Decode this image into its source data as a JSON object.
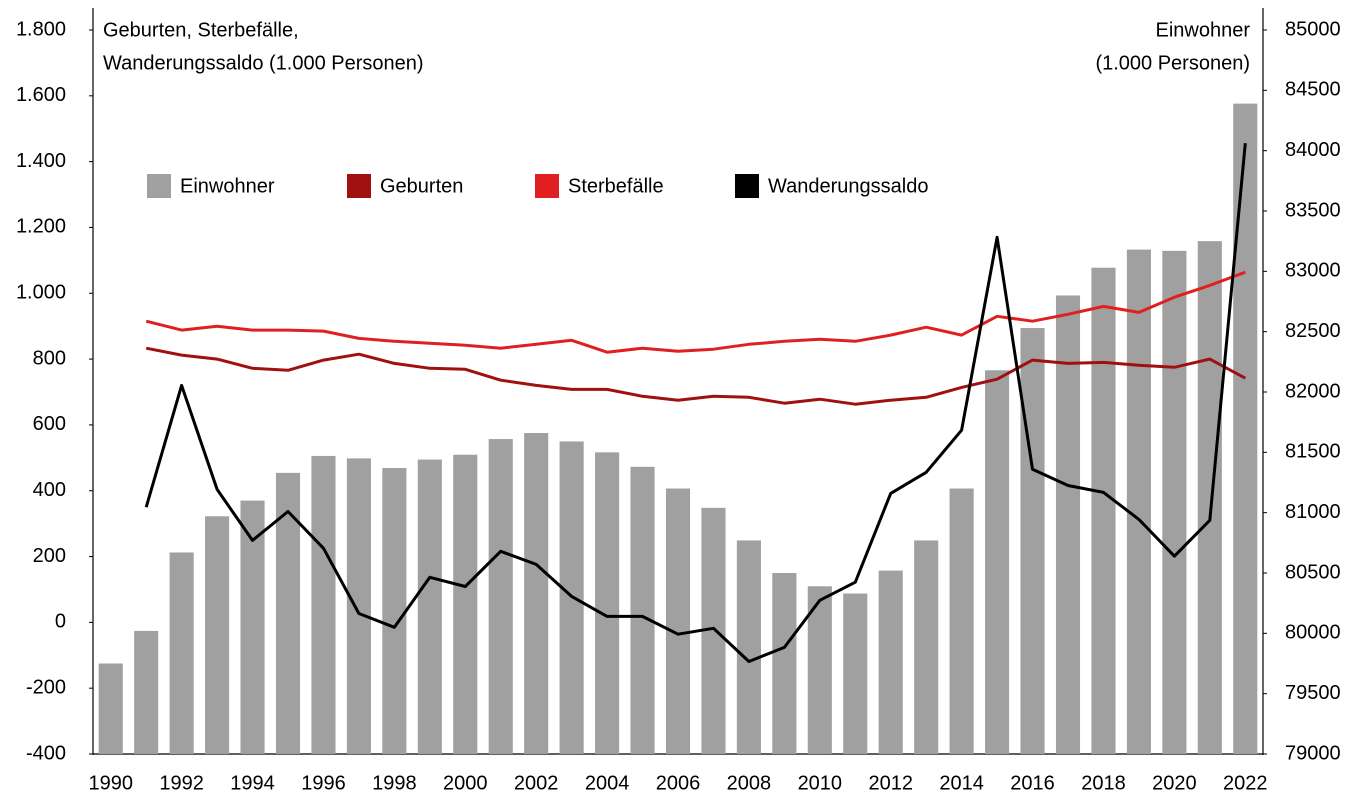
{
  "chart_data": {
    "type": "bar",
    "y_label": [
      "Geburten, Sterbefälle,",
      "Wanderungssaldo (1.000 Personen)"
    ],
    "y2_label": [
      "Einwohner",
      "(1.000 Personen)"
    ],
    "categories": [
      "1990",
      null,
      "1992",
      null,
      "1994",
      null,
      "1996",
      null,
      "1998",
      null,
      "2000",
      null,
      "2002",
      null,
      "2004",
      null,
      "2006",
      null,
      "2008",
      null,
      "2010",
      null,
      "2012",
      null,
      "2014",
      null,
      "2016",
      null,
      "2018",
      null,
      "2020",
      null,
      "2022"
    ],
    "series": [
      {
        "name": "Einwohner",
        "type": "bar",
        "axis": "y2",
        "color": "#a0a0a0",
        "values": [
          79750,
          80020,
          80670,
          80970,
          81100,
          81330,
          81470,
          81450,
          81370,
          81440,
          81480,
          81610,
          81660,
          81590,
          81500,
          81380,
          81200,
          81040,
          80770,
          80500,
          80390,
          80330,
          80520,
          80770,
          81200,
          82180,
          82530,
          82800,
          83030,
          83180,
          83170,
          83250,
          84390
        ]
      },
      {
        "name": "Geburten",
        "type": "line",
        "color": "#a01010",
        "values": [
          null,
          833,
          812,
          800,
          772,
          766,
          797,
          815,
          787,
          772,
          769,
          736,
          720,
          708,
          708,
          687,
          675,
          687,
          684,
          666,
          678,
          663,
          675,
          684,
          714,
          739,
          797,
          787,
          790,
          781,
          775,
          800,
          742
        ]
      },
      {
        "name": "Sterbefälle",
        "type": "line",
        "color": "#e02020",
        "values": [
          null,
          915,
          888,
          900,
          888,
          888,
          885,
          863,
          854,
          848,
          842,
          833,
          845,
          857,
          821,
          833,
          824,
          830,
          845,
          854,
          860,
          854,
          873,
          897,
          873,
          930,
          915,
          936,
          960,
          942,
          988,
          1024,
          1064
        ]
      },
      {
        "name": "Wanderungssaldo",
        "type": "line",
        "color": "#000000",
        "values": [
          null,
          350,
          720,
          404,
          249,
          337,
          225,
          27,
          -15,
          137,
          109,
          216,
          176,
          79,
          18,
          18,
          -36,
          -18,
          -119,
          -76,
          67,
          122,
          392,
          456,
          584,
          1170,
          465,
          416,
          395,
          313,
          201,
          310,
          1456
        ]
      }
    ],
    "ylim": [
      -400,
      1800
    ],
    "yticks": [
      -400,
      -200,
      0,
      200,
      400,
      600,
      800,
      {
        "value": 1000,
        "label": "1.000"
      },
      {
        "value": 1200,
        "label": "1.200"
      },
      {
        "value": 1400,
        "label": "1.400"
      },
      {
        "value": 1600,
        "label": "1.600"
      },
      {
        "value": 1800,
        "label": "1.800"
      }
    ],
    "y2lim": [
      79000,
      85000
    ],
    "y2ticks": [
      79000,
      79500,
      80000,
      80500,
      81000,
      81500,
      82000,
      82500,
      83000,
      83500,
      84000,
      84500,
      85000
    ],
    "grid": false
  }
}
